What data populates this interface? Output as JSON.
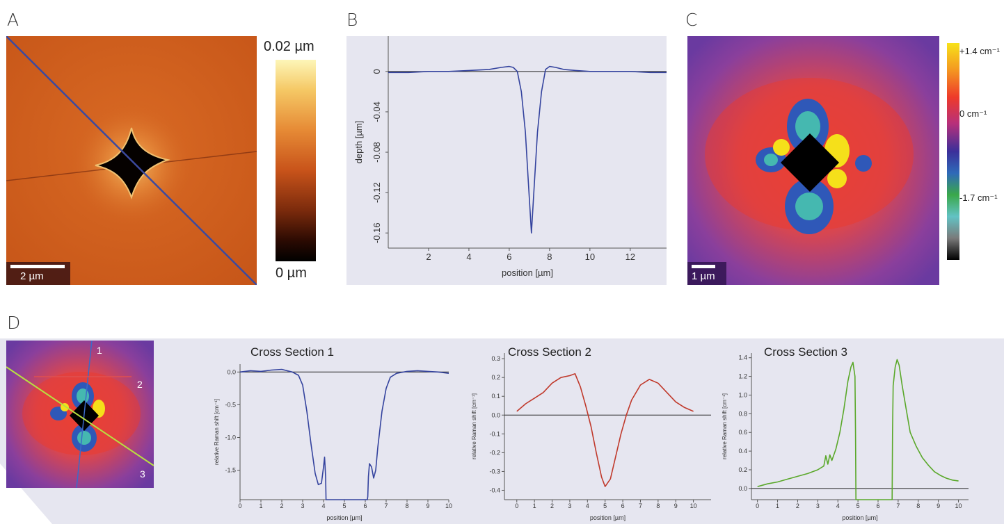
{
  "panels": {
    "a": "A",
    "b": "B",
    "c": "C",
    "d": "D"
  },
  "panel_a": {
    "scalebar": "2 µm",
    "colorbar_top": "0.02 µm",
    "colorbar_bottom": "0 µm"
  },
  "panel_c": {
    "scalebar": "1 µm",
    "colorbar_labels": [
      "+1.4 cm⁻¹",
      "0 cm⁻¹",
      "-1.7 cm⁻¹"
    ]
  },
  "panel_d": {
    "line_labels": [
      "1",
      "2",
      "3"
    ]
  },
  "colors": {
    "blue": "#34439e",
    "red": "#c0392b",
    "green": "#5aa82a",
    "background": "#e6e6f0"
  },
  "chart_data": [
    {
      "id": "B",
      "type": "line",
      "title": "",
      "xlabel": "position [µm]",
      "ylabel": "depth [µm]",
      "xlim": [
        0,
        13.8
      ],
      "ylim": [
        -0.175,
        0.035
      ],
      "xticks": [
        2,
        4,
        6,
        8,
        10,
        12
      ],
      "yticks": [
        0,
        -0.04,
        -0.08,
        -0.12,
        -0.16
      ],
      "ytick_labels": [
        "0",
        "-0.04",
        "-0.08",
        "-0.12",
        "-0.16"
      ],
      "zero_line": true,
      "series": [
        {
          "color": "#34439e",
          "x": [
            0,
            1,
            2,
            3,
            4,
            5,
            5.6,
            6.0,
            6.2,
            6.4,
            6.6,
            6.8,
            6.95,
            7.1,
            7.25,
            7.4,
            7.6,
            7.8,
            8.0,
            8.3,
            8.7,
            9.3,
            10,
            11,
            12,
            13,
            13.8
          ],
          "y": [
            -0.001,
            -0.001,
            0,
            0,
            0.001,
            0.002,
            0.004,
            0.005,
            0.004,
            0.0,
            -0.02,
            -0.06,
            -0.11,
            -0.16,
            -0.11,
            -0.06,
            -0.02,
            0.002,
            0.005,
            0.004,
            0.002,
            0.001,
            0.0,
            0.0,
            0.0,
            -0.001,
            -0.001
          ]
        }
      ]
    },
    {
      "id": "D1",
      "type": "line",
      "title": "Cross Section 1",
      "xlabel": "position [µm]",
      "ylabel": "relative Raman shift [cm⁻¹]",
      "xlim": [
        0,
        10
      ],
      "ylim": [
        -1.95,
        0.12
      ],
      "xticks": [
        0,
        1,
        2,
        3,
        4,
        5,
        6,
        7,
        8,
        9,
        10
      ],
      "xtick_labels": [
        "0",
        "1",
        "2",
        "3",
        "4",
        "5",
        "6",
        "7",
        "8",
        "9",
        "10"
      ],
      "yticks": [
        0.0,
        -0.5,
        -1.0,
        -1.5
      ],
      "ytick_labels": [
        "0.0",
        "-0.5",
        "-1.0",
        "-1.5"
      ],
      "zero_line": true,
      "series": [
        {
          "color": "#34439e",
          "x": [
            0,
            0.5,
            1,
            1.5,
            2,
            2.5,
            2.8,
            3.0,
            3.2,
            3.4,
            3.6,
            3.75,
            3.9,
            4.0,
            4.05,
            4.1,
            4.12,
            4.15,
            6.1,
            6.12,
            6.15,
            6.2,
            6.3,
            6.4,
            6.5,
            6.6,
            6.8,
            7.0,
            7.2,
            7.5,
            8,
            8.5,
            9,
            9.5,
            10
          ],
          "y": [
            0.0,
            0.02,
            0.01,
            0.03,
            0.04,
            0.0,
            -0.05,
            -0.2,
            -0.6,
            -1.1,
            -1.55,
            -1.72,
            -1.7,
            -1.45,
            -1.3,
            -1.6,
            -1.95,
            -1.95,
            -1.95,
            -1.9,
            -1.6,
            -1.4,
            -1.45,
            -1.62,
            -1.5,
            -1.15,
            -0.6,
            -0.25,
            -0.08,
            -0.02,
            0.01,
            0.02,
            0.01,
            0.0,
            -0.02
          ]
        }
      ]
    },
    {
      "id": "D2",
      "type": "line",
      "title": "Cross Section 2",
      "xlabel": "position [µm]",
      "ylabel": "relative Raman shift [cm⁻¹]",
      "xlim": [
        -0.7,
        11
      ],
      "ylim": [
        -0.45,
        0.33
      ],
      "xticks": [
        0,
        1,
        2,
        3,
        4,
        5,
        6,
        7,
        8,
        9,
        10
      ],
      "xtick_labels": [
        "0",
        "1",
        "2",
        "3",
        "4",
        "5",
        "6",
        "7",
        "8",
        "9",
        "10"
      ],
      "yticks": [
        0.3,
        0.2,
        0.1,
        0.0,
        -0.1,
        -0.2,
        -0.3,
        -0.4
      ],
      "ytick_labels": [
        "0.3",
        "0.2",
        "0.1",
        "0.0",
        "-0.1",
        "-0.2",
        "-0.3",
        "-0.4"
      ],
      "zero_line": true,
      "series": [
        {
          "color": "#c0392b",
          "x": [
            0,
            0.5,
            1,
            1.5,
            2,
            2.5,
            3,
            3.3,
            3.6,
            3.9,
            4.2,
            4.5,
            4.8,
            5.0,
            5.3,
            5.6,
            5.9,
            6.2,
            6.5,
            7.0,
            7.5,
            8.0,
            8.5,
            9.0,
            9.5,
            10
          ],
          "y": [
            0.02,
            0.06,
            0.09,
            0.12,
            0.17,
            0.2,
            0.21,
            0.22,
            0.15,
            0.05,
            -0.06,
            -0.2,
            -0.33,
            -0.38,
            -0.34,
            -0.22,
            -0.1,
            0.0,
            0.08,
            0.16,
            0.19,
            0.17,
            0.12,
            0.07,
            0.04,
            0.02
          ]
        }
      ]
    },
    {
      "id": "D3",
      "type": "line",
      "title": "Cross Section 3",
      "xlabel": "position [µm]",
      "ylabel": "relative Raman shift [cm⁻¹]",
      "xlim": [
        -0.3,
        10.5
      ],
      "ylim": [
        -0.12,
        1.45
      ],
      "xticks": [
        0,
        1,
        2,
        3,
        4,
        5,
        6,
        7,
        8,
        9,
        10
      ],
      "xtick_labels": [
        "0",
        "1",
        "2",
        "3",
        "4",
        "5",
        "6",
        "7",
        "8",
        "9",
        "10"
      ],
      "yticks": [
        0.0,
        0.2,
        0.4,
        0.6,
        0.8,
        1.0,
        1.2,
        1.4
      ],
      "ytick_labels": [
        "0.0",
        "0.2",
        "0.4",
        "0.6",
        "0.8",
        "1.0",
        "1.2",
        "1.4"
      ],
      "zero_line": true,
      "series": [
        {
          "color": "#5aa82a",
          "x": [
            0,
            0.5,
            1,
            1.5,
            2,
            2.5,
            3,
            3.3,
            3.4,
            3.5,
            3.6,
            3.7,
            3.9,
            4.1,
            4.3,
            4.5,
            4.65,
            4.75,
            4.85,
            4.88,
            4.9,
            6.7,
            6.72,
            6.75,
            6.85,
            6.95,
            7.05,
            7.2,
            7.4,
            7.6,
            7.9,
            8.2,
            8.5,
            8.8,
            9.1,
            9.4,
            9.7,
            10
          ],
          "y": [
            0.02,
            0.05,
            0.07,
            0.1,
            0.13,
            0.16,
            0.2,
            0.24,
            0.35,
            0.26,
            0.36,
            0.3,
            0.42,
            0.6,
            0.85,
            1.15,
            1.3,
            1.35,
            1.2,
            0.6,
            -0.12,
            -0.12,
            0.6,
            1.1,
            1.3,
            1.38,
            1.32,
            1.1,
            0.85,
            0.6,
            0.45,
            0.33,
            0.25,
            0.18,
            0.14,
            0.11,
            0.09,
            0.08
          ]
        }
      ]
    }
  ]
}
